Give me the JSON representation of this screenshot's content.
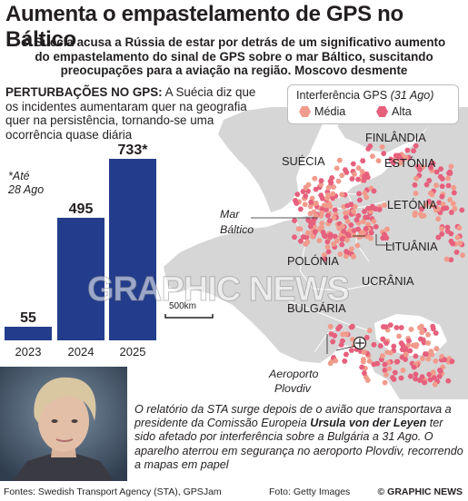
{
  "header": {
    "title": "Aumenta o empastelamento de GPS no Báltico",
    "subtitle_lines": [
      "A Suécia acusa a Rússia de estar por detrás de um significativo aumento",
      "do empastelamento do sinal de GPS sobre o mar Báltico, suscitando",
      "preocupações para a aviação na região. Moscovo desmente"
    ]
  },
  "intro": {
    "label": "PERTURBAÇÕES NO GPS:",
    "text": " A Suécia diz que os incidentes aumentaram quer na geografia quer na persistência, tornando-se uma ocorrência quase diária"
  },
  "footnote_lines": [
    "*Até",
    "28 Ago"
  ],
  "chart_data": {
    "type": "bar",
    "categories": [
      "2023",
      "2024",
      "2025"
    ],
    "values": [
      55,
      495,
      733
    ],
    "value_labels": [
      "55",
      "495",
      "733*"
    ],
    "bar_color": "#233d8c"
  },
  "map": {
    "legend": {
      "title": "Interferência GPS",
      "date": "(31 Ago)",
      "items": [
        {
          "label": "Média",
          "color": "#f19b8c"
        },
        {
          "label": "Alta",
          "color": "#e6607d"
        }
      ]
    },
    "countries": [
      "FINLÂNDIA",
      "ESTÓNIA",
      "SUÉCIA",
      "LETÓNIA",
      "LITUÂNIA",
      "POLÓNIA",
      "UCRÂNIA",
      "BULGÁRIA"
    ],
    "sea_label": [
      "Mar",
      "Báltico"
    ],
    "airport_label": [
      "Aeroporto",
      "Plovdiv"
    ],
    "scale_label": "500km",
    "colors": {
      "land": "#d6d6d6",
      "sea": "#ffffff",
      "border": "#ffffff",
      "medium": "#f19b8c",
      "high": "#e6607d"
    }
  },
  "caption": {
    "text_before": "O relatório da STA surge depois de o avião que transportava a presidente da Comissão Europeia ",
    "name": "Ursula von der Leyen",
    "text_after": " ter sido afetado por interferência sobre a Bulgária a 31 Ago. O aparelho aterrou em segurança no aeroporto Plovdiv, recorrendo a mapas em papel"
  },
  "footer": {
    "sources": "Fontes: Swedish Transport Agency (STA), GPSJam",
    "photo_credit": "Foto: Getty Images",
    "brand": "© GRAPHIC NEWS"
  },
  "watermark": "GRAPHIC NEWS"
}
